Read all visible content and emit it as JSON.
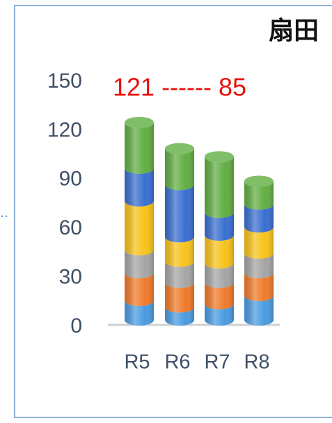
{
  "chart_data": {
    "type": "stacked-cylinder",
    "title": "扇田",
    "annotation": "121 ------ 85",
    "categories": [
      "R5",
      "R6",
      "R7",
      "R8"
    ],
    "series": [
      {
        "color": "#4a9be0",
        "values": [
          12,
          8,
          10,
          15
        ]
      },
      {
        "color": "#f07a2a",
        "values": [
          17,
          15,
          13,
          14
        ]
      },
      {
        "color": "#a5a5a5",
        "values": [
          14,
          13,
          12,
          12
        ]
      },
      {
        "color": "#f7c21a",
        "values": [
          30,
          15,
          17,
          16
        ]
      },
      {
        "color": "#3a6fd0",
        "values": [
          20,
          32,
          14,
          14
        ]
      },
      {
        "color": "#62ae43",
        "values": [
          28,
          22,
          34,
          14
        ]
      }
    ],
    "ylim": [
      0,
      150
    ],
    "yticks": [
      0,
      30,
      60,
      90,
      120,
      150
    ]
  }
}
